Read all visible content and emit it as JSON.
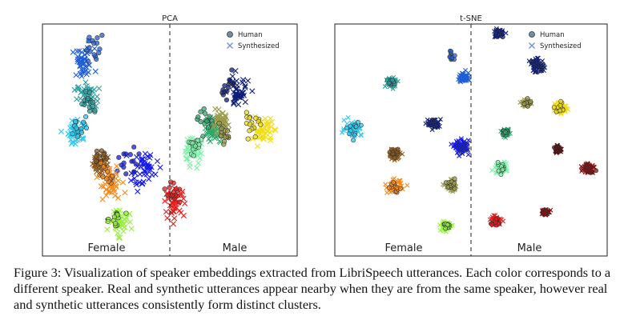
{
  "figure": {
    "panels": [
      {
        "title": "PCA",
        "legend": {
          "human": "Human",
          "synthesized": "Synthesized"
        },
        "regions": {
          "left": "Female",
          "right": "Male"
        }
      },
      {
        "title": "t-SNE",
        "legend": {
          "human": "Human",
          "synthesized": "Synthesized"
        },
        "regions": {
          "left": "Female",
          "right": "Male"
        }
      }
    ],
    "caption": "Figure 3: Visualization of speaker embeddings extracted from LibriSpeech utterances. Each color corresponds to a different speaker. Real and synthetic utterances appear nearby when they are from the same speaker, however real and synthetic utterances consistently form distinct clusters."
  },
  "chart_data": [
    {
      "type": "scatter",
      "title": "PCA",
      "xlabel": "",
      "ylabel": "",
      "legend": [
        "Human",
        "Synthesized"
      ],
      "legend_position": "top-right",
      "grid": false,
      "annotations": [
        "Female",
        "Male"
      ],
      "clusters": [
        {
          "color": "#1f5fd6",
          "group": "Female",
          "human": [
            0.31,
            0.89
          ],
          "synth": [
            0.24,
            0.83
          ],
          "spread": 0.06
        },
        {
          "color": "#2f9e9e",
          "group": "Female",
          "human": [
            0.28,
            0.66
          ],
          "synth": [
            0.26,
            0.69
          ],
          "spread": 0.05
        },
        {
          "color": "#2ec7ee",
          "group": "Female",
          "human": [
            0.22,
            0.55
          ],
          "synth": [
            0.2,
            0.54
          ],
          "spread": 0.05
        },
        {
          "color": "#8a5a1e",
          "group": "Female",
          "human": [
            0.33,
            0.43
          ],
          "synth": [
            0.34,
            0.4
          ],
          "spread": 0.04
        },
        {
          "color": "#1419e6",
          "group": "Female",
          "human": [
            0.5,
            0.4
          ],
          "synth": [
            0.6,
            0.37
          ],
          "spread": 0.07
        },
        {
          "color": "#f58a1e",
          "group": "Female",
          "human": [
            0.38,
            0.35
          ],
          "synth": [
            0.4,
            0.31
          ],
          "spread": 0.06
        },
        {
          "color": "#94f03c",
          "group": "Female",
          "human": [
            0.42,
            0.16
          ],
          "synth": [
            0.45,
            0.15
          ],
          "spread": 0.05
        },
        {
          "color": "#0f1f7a",
          "group": "Male",
          "human": [
            1.1,
            0.74
          ],
          "synth": [
            1.15,
            0.7
          ],
          "spread": 0.06
        },
        {
          "color": "#f2dc14",
          "group": "Male",
          "human": [
            1.24,
            0.58
          ],
          "synth": [
            1.3,
            0.54
          ],
          "spread": 0.05
        },
        {
          "color": "#2ea86b",
          "group": "Male",
          "human": [
            0.97,
            0.58
          ],
          "synth": [
            1.01,
            0.54
          ],
          "spread": 0.05
        },
        {
          "color": "#9b9b4b",
          "group": "Male",
          "human": [
            1.06,
            0.52
          ],
          "synth": [
            1.05,
            0.57
          ],
          "spread": 0.04
        },
        {
          "color": "#7ef0a8",
          "group": "Male",
          "human": [
            0.9,
            0.48
          ],
          "synth": [
            0.88,
            0.45
          ],
          "spread": 0.05
        },
        {
          "color": "#e61a1a",
          "group": "Male",
          "human": [
            0.78,
            0.27
          ],
          "synth": [
            0.78,
            0.23
          ],
          "spread": 0.05
        }
      ]
    },
    {
      "type": "scatter",
      "title": "t-SNE",
      "xlabel": "",
      "ylabel": "",
      "legend": [
        "Human",
        "Synthesized"
      ],
      "legend_position": "top-right",
      "grid": false,
      "annotations": [
        "Female",
        "Male"
      ],
      "clusters": [
        {
          "color": "#2f9e9e",
          "group": "Female",
          "human": [
            0.22,
            0.75
          ],
          "synth": [
            0.22,
            0.75
          ],
          "spread": 0.02
        },
        {
          "color": "#2ec7ee",
          "group": "Female",
          "human": [
            0.07,
            0.55
          ],
          "synth": [
            0.07,
            0.55
          ],
          "spread": 0.03
        },
        {
          "color": "#1f5fd6",
          "group": "Female",
          "human": [
            0.45,
            0.86
          ],
          "synth": [
            0.5,
            0.77
          ],
          "spread": 0.02
        },
        {
          "color": "#0f1f7a",
          "group": "Female",
          "human": [
            0.38,
            0.57
          ],
          "synth": [
            0.38,
            0.57
          ],
          "spread": 0.02
        },
        {
          "color": "#1419e6",
          "group": "Female",
          "human": [
            0.49,
            0.47
          ],
          "synth": [
            0.49,
            0.47
          ],
          "spread": 0.025
        },
        {
          "color": "#8a5a1e",
          "group": "Female",
          "human": [
            0.23,
            0.44
          ],
          "synth": [
            0.23,
            0.44
          ],
          "spread": 0.02
        },
        {
          "color": "#f58a1e",
          "group": "Female",
          "human": [
            0.23,
            0.3
          ],
          "synth": [
            0.23,
            0.3
          ],
          "spread": 0.025
        },
        {
          "color": "#9b9b4b",
          "group": "Female",
          "human": [
            0.45,
            0.3
          ],
          "synth": [
            0.45,
            0.3
          ],
          "spread": 0.02
        },
        {
          "color": "#94f03c",
          "group": "Female",
          "human": [
            0.43,
            0.13
          ],
          "synth": [
            0.43,
            0.13
          ],
          "spread": 0.02
        },
        {
          "color": "#0f1f7a",
          "group": "Male",
          "human": [
            0.63,
            0.96
          ],
          "synth": [
            0.63,
            0.96
          ],
          "spread": 0.015
        },
        {
          "color": "#0f1f7a",
          "group": "Male",
          "human": [
            0.78,
            0.82
          ],
          "synth": [
            0.78,
            0.82
          ],
          "spread": 0.025
        },
        {
          "color": "#9b9b4b",
          "group": "Male",
          "human": [
            0.74,
            0.66
          ],
          "synth": [
            0.74,
            0.66
          ],
          "spread": 0.015
        },
        {
          "color": "#f2dc14",
          "group": "Male",
          "human": [
            0.87,
            0.64
          ],
          "synth": [
            0.87,
            0.64
          ],
          "spread": 0.025
        },
        {
          "color": "#2ea86b",
          "group": "Male",
          "human": [
            0.66,
            0.53
          ],
          "synth": [
            0.66,
            0.53
          ],
          "spread": 0.012
        },
        {
          "color": "#5a0d0d",
          "group": "Male",
          "human": [
            0.86,
            0.46
          ],
          "synth": [
            0.86,
            0.46
          ],
          "spread": 0.012
        },
        {
          "color": "#7ef0a8",
          "group": "Male",
          "human": [
            0.64,
            0.38
          ],
          "synth": [
            0.64,
            0.38
          ],
          "spread": 0.02
        },
        {
          "color": "#8b0d0d",
          "group": "Male",
          "human": [
            0.98,
            0.38
          ],
          "synth": [
            0.98,
            0.38
          ],
          "spread": 0.02
        },
        {
          "color": "#8b0d0d",
          "group": "Male",
          "human": [
            0.81,
            0.19
          ],
          "synth": [
            0.81,
            0.19
          ],
          "spread": 0.012
        },
        {
          "color": "#e61a1a",
          "group": "Male",
          "human": [
            0.62,
            0.15
          ],
          "synth": [
            0.62,
            0.15
          ],
          "spread": 0.02
        }
      ]
    }
  ]
}
